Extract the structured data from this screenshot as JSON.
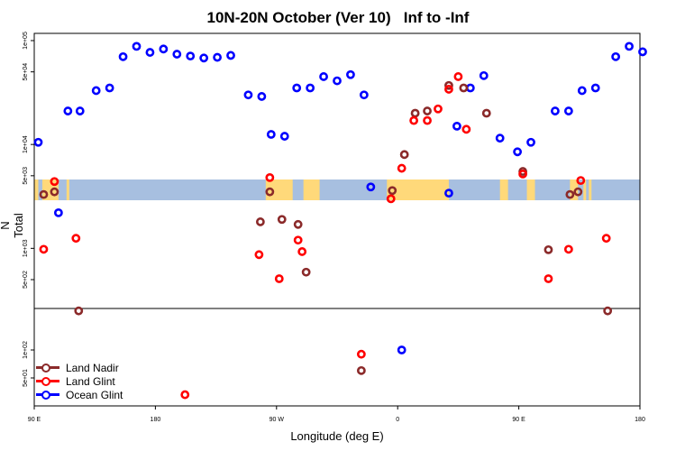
{
  "chart_data": {
    "type": "scatter",
    "title": "10N-20N October (Ver 10)   Inf to -Inf",
    "xlabel": "Longitude (deg E)",
    "ylabel": "N Total",
    "x_ticks": [
      {
        "value": 90,
        "label": "90 E"
      },
      {
        "value": 180,
        "label": "180"
      },
      {
        "value": 270,
        "label": "90 W"
      },
      {
        "value": 360,
        "label": "0"
      },
      {
        "value": 450,
        "label": "90 E"
      },
      {
        "value": 540,
        "label": "180"
      }
    ],
    "xlim": [
      90,
      540
    ],
    "upper_panel": {
      "scale": "log",
      "y_ticks": [
        {
          "value": 500,
          "label": "5e+02"
        },
        {
          "value": 1000,
          "label": "1e+03"
        },
        {
          "value": 5000,
          "label": "5e+03"
        },
        {
          "value": 10000,
          "label": "1e+04"
        },
        {
          "value": 50000,
          "label": "5e+04"
        },
        {
          "value": 100000,
          "label": "1e+05"
        }
      ]
    },
    "lower_panel": {
      "scale": "log",
      "y_ticks": [
        {
          "value": 50,
          "label": "5e+01"
        },
        {
          "value": 100,
          "label": "1e+02"
        }
      ]
    },
    "series": [
      {
        "name": "Land Nadir",
        "color": "#8b2a2a",
        "points": [
          {
            "x": 97,
            "y": 3300
          },
          {
            "x": 105,
            "y": 3500
          },
          {
            "x": 123,
            "y": 250
          },
          {
            "x": 258,
            "y": 1800
          },
          {
            "x": 265,
            "y": 3500
          },
          {
            "x": 274,
            "y": 1900
          },
          {
            "x": 286,
            "y": 1700
          },
          {
            "x": 292,
            "y": 590
          },
          {
            "x": 356,
            "y": 3600
          },
          {
            "x": 365,
            "y": 8000
          },
          {
            "x": 373,
            "y": 20000
          },
          {
            "x": 382,
            "y": 21000
          },
          {
            "x": 398,
            "y": 37000
          },
          {
            "x": 409,
            "y": 35000
          },
          {
            "x": 426,
            "y": 20000
          },
          {
            "x": 453,
            "y": 5500
          },
          {
            "x": 472,
            "y": 970
          },
          {
            "x": 488,
            "y": 3300
          },
          {
            "x": 494,
            "y": 3500
          },
          {
            "x": 516,
            "y": 250
          }
        ],
        "lower_points": [
          {
            "x": 333,
            "y": 60
          }
        ]
      },
      {
        "name": "Land Glint",
        "color": "#ff0000",
        "points": [
          {
            "x": 97,
            "y": 980
          },
          {
            "x": 105,
            "y": 4400
          },
          {
            "x": 121,
            "y": 1250
          },
          {
            "x": 257,
            "y": 870
          },
          {
            "x": 265,
            "y": 4800
          },
          {
            "x": 272,
            "y": 510
          },
          {
            "x": 286,
            "y": 1200
          },
          {
            "x": 289,
            "y": 930
          },
          {
            "x": 355,
            "y": 3000
          },
          {
            "x": 363,
            "y": 5900
          },
          {
            "x": 372,
            "y": 17000
          },
          {
            "x": 382,
            "y": 17000
          },
          {
            "x": 390,
            "y": 22000
          },
          {
            "x": 398,
            "y": 34000
          },
          {
            "x": 405,
            "y": 45000
          },
          {
            "x": 411,
            "y": 14000
          },
          {
            "x": 453,
            "y": 5200
          },
          {
            "x": 472,
            "y": 510
          },
          {
            "x": 487,
            "y": 980
          },
          {
            "x": 496,
            "y": 4500
          },
          {
            "x": 515,
            "y": 1250
          }
        ],
        "lower_points": [
          {
            "x": 202,
            "y": 33
          },
          {
            "x": 333,
            "y": 90
          }
        ]
      },
      {
        "name": "Ocean Glint",
        "color": "#0000ff",
        "points": [
          {
            "x": 93,
            "y": 10500
          },
          {
            "x": 108,
            "y": 2200
          },
          {
            "x": 115,
            "y": 21000
          },
          {
            "x": 124,
            "y": 21000
          },
          {
            "x": 136,
            "y": 33000
          },
          {
            "x": 146,
            "y": 35000
          },
          {
            "x": 156,
            "y": 70000
          },
          {
            "x": 166,
            "y": 88000
          },
          {
            "x": 176,
            "y": 77000
          },
          {
            "x": 186,
            "y": 83000
          },
          {
            "x": 196,
            "y": 74000
          },
          {
            "x": 206,
            "y": 71000
          },
          {
            "x": 216,
            "y": 68000
          },
          {
            "x": 226,
            "y": 69000
          },
          {
            "x": 236,
            "y": 72000
          },
          {
            "x": 249,
            "y": 30000
          },
          {
            "x": 259,
            "y": 29000
          },
          {
            "x": 266,
            "y": 12500
          },
          {
            "x": 276,
            "y": 12000
          },
          {
            "x": 285,
            "y": 35000
          },
          {
            "x": 295,
            "y": 35000
          },
          {
            "x": 305,
            "y": 45000
          },
          {
            "x": 315,
            "y": 41000
          },
          {
            "x": 325,
            "y": 47000
          },
          {
            "x": 335,
            "y": 30000
          },
          {
            "x": 340,
            "y": 3900
          },
          {
            "x": 398,
            "y": 3400
          },
          {
            "x": 404,
            "y": 15000
          },
          {
            "x": 414,
            "y": 35000
          },
          {
            "x": 424,
            "y": 46000
          },
          {
            "x": 436,
            "y": 11500
          },
          {
            "x": 449,
            "y": 8500
          },
          {
            "x": 459,
            "y": 10500
          },
          {
            "x": 477,
            "y": 21000
          },
          {
            "x": 487,
            "y": 21000
          },
          {
            "x": 497,
            "y": 33000
          },
          {
            "x": 507,
            "y": 35000
          },
          {
            "x": 522,
            "y": 70000
          },
          {
            "x": 532,
            "y": 88000
          },
          {
            "x": 542,
            "y": 78000
          }
        ],
        "lower_points": [
          {
            "x": 363,
            "y": 100
          }
        ]
      }
    ],
    "legend": {
      "position": "bottom-left",
      "entries": [
        "Land Nadir",
        "Land Glint",
        "Ocean Glint"
      ]
    },
    "map_colors": {
      "ocean": "#a7bfe0",
      "land": "#ffd97a"
    }
  }
}
